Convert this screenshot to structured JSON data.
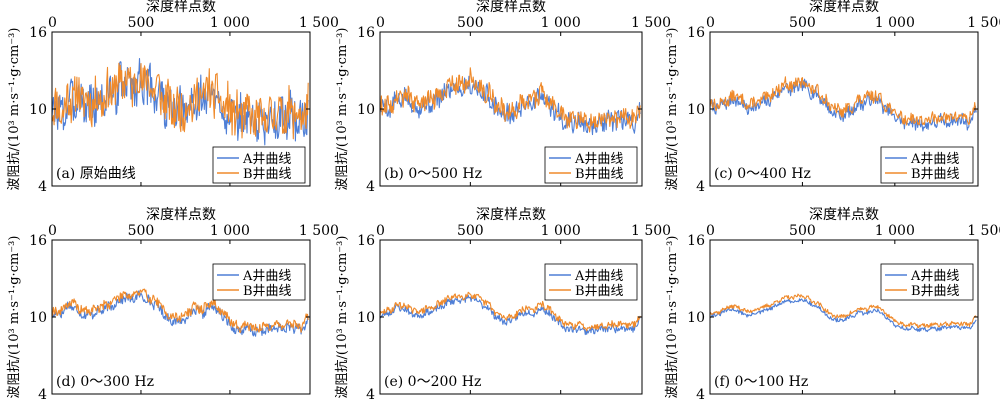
{
  "figure": {
    "colors": {
      "A": "#4f7fd6",
      "B": "#ef8a2b"
    }
  },
  "chart_data": [
    {
      "type": "line",
      "panel_label": "(a) 原始曲线",
      "xlabel": "深度样点数",
      "ylabel": "波阻抗/(10³ m·s⁻¹·g·cm⁻³)",
      "xlim": [
        0,
        1450
      ],
      "ylim": [
        4,
        16
      ],
      "xticks": [
        0,
        500,
        1000,
        1500
      ],
      "xtick_labels": [
        "0",
        "500",
        "1 000",
        "1 500"
      ],
      "yticks": [
        4,
        10,
        16
      ],
      "ytick_labels": [
        "4",
        "10",
        "16"
      ],
      "legend_position": "bottom-right",
      "x": [
        0,
        50,
        100,
        150,
        200,
        250,
        300,
        350,
        400,
        450,
        500,
        550,
        600,
        650,
        700,
        750,
        800,
        850,
        900,
        950,
        1000,
        1050,
        1100,
        1150,
        1200,
        1250,
        1300,
        1350,
        1400,
        1440
      ],
      "series": [
        {
          "name": "A井曲线",
          "color": "#4f7fd6",
          "noise": 1.6,
          "seed": 3,
          "values": [
            10.2,
            9.5,
            10.6,
            10.9,
            10.3,
            10.5,
            10.8,
            11.3,
            12.0,
            11.8,
            12.3,
            11.6,
            11.2,
            10.0,
            9.6,
            9.8,
            10.4,
            10.9,
            11.0,
            10.2,
            9.6,
            9.1,
            9.3,
            8.8,
            9.0,
            9.4,
            9.3,
            9.5,
            9.0,
            9.8
          ]
        },
        {
          "name": "B井曲线",
          "color": "#ef8a2b",
          "noise": 1.6,
          "seed": 11,
          "values": [
            10.4,
            9.8,
            10.8,
            11.1,
            10.5,
            10.8,
            11.0,
            11.6,
            12.3,
            12.0,
            12.5,
            11.9,
            11.4,
            10.3,
            9.9,
            10.1,
            10.7,
            11.2,
            11.4,
            10.5,
            9.9,
            9.4,
            9.6,
            9.1,
            9.3,
            9.7,
            9.6,
            9.8,
            9.3,
            10.1
          ]
        }
      ]
    },
    {
      "type": "line",
      "panel_label": "(b) 0～500 Hz",
      "xlabel": "深度样点数",
      "ylabel": "波阻抗/(10³ m·s⁻¹·g·cm⁻³)",
      "xlim": [
        0,
        1450
      ],
      "ylim": [
        4,
        16
      ],
      "xticks": [
        0,
        500,
        1000,
        1500
      ],
      "xtick_labels": [
        "0",
        "500",
        "1 000",
        "1 500"
      ],
      "yticks": [
        4,
        10,
        16
      ],
      "ytick_labels": [
        "4",
        "10",
        "16"
      ],
      "legend_position": "bottom-right",
      "x": [
        0,
        50,
        100,
        150,
        200,
        250,
        300,
        350,
        400,
        450,
        500,
        550,
        600,
        650,
        700,
        750,
        800,
        850,
        900,
        950,
        1000,
        1050,
        1100,
        1150,
        1200,
        1250,
        1300,
        1350,
        1400,
        1440
      ],
      "series": [
        {
          "name": "A井曲线",
          "color": "#4f7fd6",
          "noise": 0.7,
          "seed": 5,
          "values": [
            10.3,
            10.0,
            10.7,
            10.8,
            10.1,
            10.3,
            10.6,
            11.1,
            11.8,
            11.6,
            12.0,
            11.4,
            11.0,
            9.9,
            9.5,
            9.7,
            10.4,
            10.6,
            10.9,
            10.0,
            9.4,
            8.9,
            9.0,
            8.6,
            8.8,
            9.1,
            9.0,
            9.2,
            8.8,
            9.9
          ]
        },
        {
          "name": "B井曲线",
          "color": "#ef8a2b",
          "noise": 0.7,
          "seed": 9,
          "values": [
            10.5,
            10.2,
            10.9,
            11.1,
            10.4,
            10.6,
            10.9,
            11.4,
            12.1,
            11.9,
            12.3,
            11.7,
            11.3,
            10.2,
            9.8,
            10.0,
            10.7,
            10.9,
            11.2,
            10.3,
            9.7,
            9.2,
            9.3,
            8.9,
            9.1,
            9.4,
            9.3,
            9.5,
            9.1,
            10.2
          ]
        }
      ]
    },
    {
      "type": "line",
      "panel_label": "(c) 0～400 Hz",
      "xlabel": "深度样点数",
      "ylabel": "波阻抗/(10³ m·s⁻¹·g·cm⁻³)",
      "xlim": [
        0,
        1450
      ],
      "ylim": [
        4,
        16
      ],
      "xticks": [
        0,
        500,
        1000,
        1500
      ],
      "xtick_labels": [
        "0",
        "500",
        "1 000",
        "1 500"
      ],
      "yticks": [
        4,
        10,
        16
      ],
      "ytick_labels": [
        "4",
        "10",
        "16"
      ],
      "legend_position": "bottom-right",
      "x": [
        0,
        50,
        100,
        150,
        200,
        250,
        300,
        350,
        400,
        450,
        500,
        550,
        600,
        650,
        700,
        750,
        800,
        850,
        900,
        950,
        1000,
        1050,
        1100,
        1150,
        1200,
        1250,
        1300,
        1350,
        1400,
        1440
      ],
      "series": [
        {
          "name": "A井曲线",
          "color": "#4f7fd6",
          "noise": 0.45,
          "seed": 7,
          "values": [
            10.2,
            10.1,
            10.6,
            10.7,
            10.0,
            10.2,
            10.5,
            11.0,
            11.7,
            11.5,
            11.9,
            11.3,
            10.9,
            9.9,
            9.5,
            9.7,
            10.3,
            10.6,
            10.8,
            10.0,
            9.4,
            8.9,
            9.0,
            8.7,
            8.9,
            9.1,
            9.0,
            9.2,
            8.9,
            9.9
          ]
        },
        {
          "name": "B井曲线",
          "color": "#ef8a2b",
          "noise": 0.45,
          "seed": 13,
          "values": [
            10.4,
            10.3,
            10.8,
            11.0,
            10.3,
            10.5,
            10.8,
            11.3,
            12.0,
            11.8,
            12.2,
            11.6,
            11.2,
            10.2,
            9.8,
            10.0,
            10.6,
            10.9,
            11.1,
            10.3,
            9.7,
            9.2,
            9.3,
            9.0,
            9.2,
            9.4,
            9.3,
            9.5,
            9.2,
            10.2
          ]
        }
      ]
    },
    {
      "type": "line",
      "panel_label": "(d) 0～300 Hz",
      "xlabel": "深度样点数",
      "ylabel": "波阻抗/(10³ m·s⁻¹·g·cm⁻³)",
      "xlim": [
        0,
        1450
      ],
      "ylim": [
        4,
        16
      ],
      "xticks": [
        0,
        500,
        1000,
        1500
      ],
      "xtick_labels": [
        "0",
        "500",
        "1 000",
        "1 500"
      ],
      "yticks": [
        4,
        10,
        16
      ],
      "ytick_labels": [
        "4",
        "10",
        "16"
      ],
      "legend_position": "top-right",
      "x": [
        0,
        50,
        100,
        150,
        200,
        250,
        300,
        350,
        400,
        450,
        500,
        550,
        600,
        650,
        700,
        750,
        800,
        850,
        900,
        950,
        1000,
        1050,
        1100,
        1150,
        1200,
        1250,
        1300,
        1350,
        1400,
        1440
      ],
      "series": [
        {
          "name": "A井曲线",
          "color": "#4f7fd6",
          "noise": 0.35,
          "seed": 17,
          "values": [
            10.2,
            10.3,
            11.0,
            10.4,
            10.1,
            10.4,
            10.6,
            11.0,
            11.5,
            11.4,
            11.7,
            11.2,
            10.8,
            9.9,
            9.6,
            9.9,
            10.5,
            10.3,
            10.9,
            10.2,
            9.4,
            8.9,
            9.1,
            8.8,
            9.0,
            9.1,
            9.1,
            9.2,
            8.9,
            9.8
          ]
        },
        {
          "name": "B井曲线",
          "color": "#ef8a2b",
          "noise": 0.35,
          "seed": 19,
          "values": [
            10.4,
            10.5,
            11.2,
            10.7,
            10.4,
            10.7,
            10.9,
            11.3,
            11.8,
            11.7,
            12.0,
            11.5,
            11.1,
            10.2,
            9.9,
            10.2,
            10.8,
            10.6,
            11.2,
            10.5,
            9.7,
            9.2,
            9.4,
            9.1,
            9.3,
            9.4,
            9.4,
            9.5,
            9.2,
            10.1
          ]
        }
      ]
    },
    {
      "type": "line",
      "panel_label": "(e) 0～200 Hz",
      "xlabel": "深度样点数",
      "ylabel": "波阻抗/(10³ m·s⁻¹·g·cm⁻³)",
      "xlim": [
        0,
        1450
      ],
      "ylim": [
        4,
        16
      ],
      "xticks": [
        0,
        500,
        1000,
        1500
      ],
      "xtick_labels": [
        "0",
        "500",
        "1 000",
        "1 500"
      ],
      "yticks": [
        4,
        10,
        16
      ],
      "ytick_labels": [
        "4",
        "10",
        "16"
      ],
      "legend_position": "top-right",
      "x": [
        0,
        50,
        100,
        150,
        200,
        250,
        300,
        350,
        400,
        450,
        500,
        550,
        600,
        650,
        700,
        750,
        800,
        850,
        900,
        950,
        1000,
        1050,
        1100,
        1150,
        1200,
        1250,
        1300,
        1350,
        1400,
        1440
      ],
      "series": [
        {
          "name": "A井曲线",
          "color": "#4f7fd6",
          "noise": 0.25,
          "seed": 23,
          "values": [
            10.1,
            10.3,
            10.8,
            10.5,
            10.1,
            10.3,
            10.5,
            10.9,
            11.3,
            11.3,
            11.5,
            11.1,
            10.7,
            9.9,
            9.6,
            9.9,
            10.4,
            10.3,
            10.7,
            10.1,
            9.4,
            9.0,
            9.1,
            8.9,
            9.0,
            9.1,
            9.1,
            9.2,
            9.0,
            9.8
          ]
        },
        {
          "name": "B井曲线",
          "color": "#ef8a2b",
          "noise": 0.25,
          "seed": 29,
          "values": [
            10.3,
            10.5,
            11.0,
            10.8,
            10.4,
            10.6,
            10.8,
            11.2,
            11.6,
            11.6,
            11.8,
            11.4,
            11.0,
            10.2,
            9.9,
            10.2,
            10.7,
            10.6,
            11.0,
            10.4,
            9.7,
            9.3,
            9.4,
            9.2,
            9.3,
            9.4,
            9.4,
            9.5,
            9.3,
            10.1
          ]
        }
      ]
    },
    {
      "type": "line",
      "panel_label": "(f) 0～100 Hz",
      "xlabel": "深度样点数",
      "ylabel": "波阻抗/(10³ m·s⁻¹·g·cm⁻³)",
      "xlim": [
        0,
        1450
      ],
      "ylim": [
        4,
        16
      ],
      "xticks": [
        0,
        500,
        1000,
        1500
      ],
      "xtick_labels": [
        "0",
        "500",
        "1 000",
        "1 500"
      ],
      "yticks": [
        4,
        10,
        16
      ],
      "ytick_labels": [
        "4",
        "10",
        "16"
      ],
      "legend_position": "top-right",
      "x": [
        0,
        50,
        100,
        150,
        200,
        250,
        300,
        350,
        400,
        450,
        500,
        550,
        600,
        650,
        700,
        750,
        800,
        850,
        900,
        950,
        1000,
        1050,
        1100,
        1150,
        1200,
        1250,
        1300,
        1350,
        1400,
        1440
      ],
      "series": [
        {
          "name": "A井曲线",
          "color": "#4f7fd6",
          "noise": 0.15,
          "seed": 31,
          "values": [
            10.1,
            10.2,
            10.6,
            10.5,
            10.1,
            10.3,
            10.5,
            10.8,
            11.2,
            11.2,
            11.4,
            11.0,
            10.6,
            9.9,
            9.7,
            9.9,
            10.3,
            10.3,
            10.6,
            10.0,
            9.4,
            9.1,
            9.1,
            9.0,
            9.1,
            9.1,
            9.2,
            9.2,
            9.1,
            9.7
          ]
        },
        {
          "name": "B井曲线",
          "color": "#ef8a2b",
          "noise": 0.15,
          "seed": 37,
          "values": [
            10.3,
            10.4,
            10.8,
            10.8,
            10.4,
            10.6,
            10.8,
            11.1,
            11.5,
            11.5,
            11.7,
            11.3,
            10.9,
            10.2,
            10.0,
            10.2,
            10.6,
            10.6,
            10.9,
            10.3,
            9.7,
            9.4,
            9.4,
            9.3,
            9.4,
            9.4,
            9.5,
            9.5,
            9.4,
            10.0
          ]
        }
      ]
    }
  ]
}
